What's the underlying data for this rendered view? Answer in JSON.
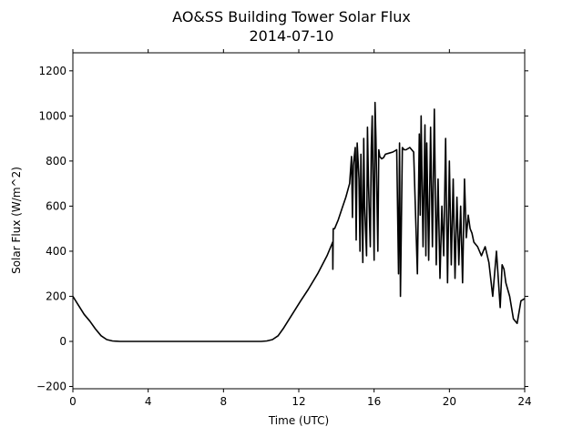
{
  "chart_data": {
    "type": "line",
    "title": "AO&SS Building Tower Solar Flux",
    "subtitle": "2014-07-10",
    "xlabel": "Time (UTC)",
    "ylabel": "Solar Flux (W/m^2)",
    "xlim": [
      0,
      24
    ],
    "ylim": [
      -210,
      1280
    ],
    "xticks": [
      0,
      4,
      8,
      12,
      16,
      20,
      24
    ],
    "xtick_labels": [
      "0",
      "4",
      "8",
      "12",
      "16",
      "20",
      "24"
    ],
    "yticks": [
      -200,
      0,
      200,
      400,
      600,
      800,
      1000,
      1200
    ],
    "ytick_labels": [
      "−200",
      "0",
      "200",
      "400",
      "600",
      "800",
      "1000",
      "1200"
    ],
    "grid": false,
    "series": [
      {
        "color": "#000000",
        "x": [
          0,
          0.3,
          0.6,
          0.9,
          1.2,
          1.5,
          1.8,
          2.1,
          2.5,
          3,
          4,
          6,
          8,
          9,
          10,
          10.3,
          10.6,
          10.9,
          11.2,
          11.5,
          11.8,
          12.1,
          12.5,
          13,
          13.5,
          13.8,
          13.81,
          13.83,
          13.9,
          14.1,
          14.3,
          14.5,
          14.7,
          14.8,
          14.85,
          14.9,
          15.0,
          15.05,
          15.1,
          15.2,
          15.25,
          15.3,
          15.4,
          15.45,
          15.5,
          15.6,
          15.65,
          15.7,
          15.8,
          15.85,
          15.9,
          16.0,
          16.05,
          16.1,
          16.2,
          16.25,
          16.3,
          16.4,
          16.5,
          16.6,
          16.8,
          17.0,
          17.2,
          17.3,
          17.35,
          17.4,
          17.5,
          17.6,
          17.7,
          17.9,
          18.1,
          18.3,
          18.4,
          18.45,
          18.5,
          18.6,
          18.7,
          18.75,
          18.8,
          18.9,
          19.0,
          19.1,
          19.2,
          19.3,
          19.4,
          19.5,
          19.6,
          19.7,
          19.8,
          19.9,
          20.0,
          20.1,
          20.2,
          20.3,
          20.4,
          20.5,
          20.6,
          20.7,
          20.8,
          20.9,
          21.0,
          21.1,
          21.2,
          21.3,
          21.5,
          21.7,
          21.8,
          21.9,
          22.1,
          22.3,
          22.5,
          22.7,
          22.8,
          22.9,
          23.0,
          23.2,
          23.4,
          23.6,
          23.8,
          24.0
        ],
        "values": [
          200,
          160,
          120,
          90,
          55,
          25,
          8,
          2,
          0,
          0,
          0,
          0,
          0,
          0,
          0,
          2,
          8,
          25,
          60,
          100,
          140,
          180,
          230,
          300,
          380,
          440,
          320,
          500,
          500,
          540,
          590,
          640,
          700,
          820,
          550,
          780,
          860,
          450,
          880,
          720,
          400,
          830,
          350,
          900,
          600,
          380,
          950,
          700,
          420,
          860,
          1000,
          360,
          1060,
          900,
          400,
          850,
          820,
          810,
          815,
          830,
          835,
          840,
          850,
          300,
          880,
          200,
          860,
          850,
          850,
          860,
          840,
          300,
          920,
          560,
          1000,
          420,
          960,
          380,
          880,
          360,
          950,
          420,
          1030,
          340,
          720,
          280,
          600,
          380,
          900,
          260,
          800,
          340,
          720,
          280,
          640,
          340,
          600,
          260,
          720,
          460,
          560,
          500,
          480,
          440,
          420,
          380,
          400,
          420,
          350,
          200,
          400,
          150,
          340,
          320,
          260,
          200,
          100,
          80,
          180,
          190
        ]
      }
    ]
  }
}
